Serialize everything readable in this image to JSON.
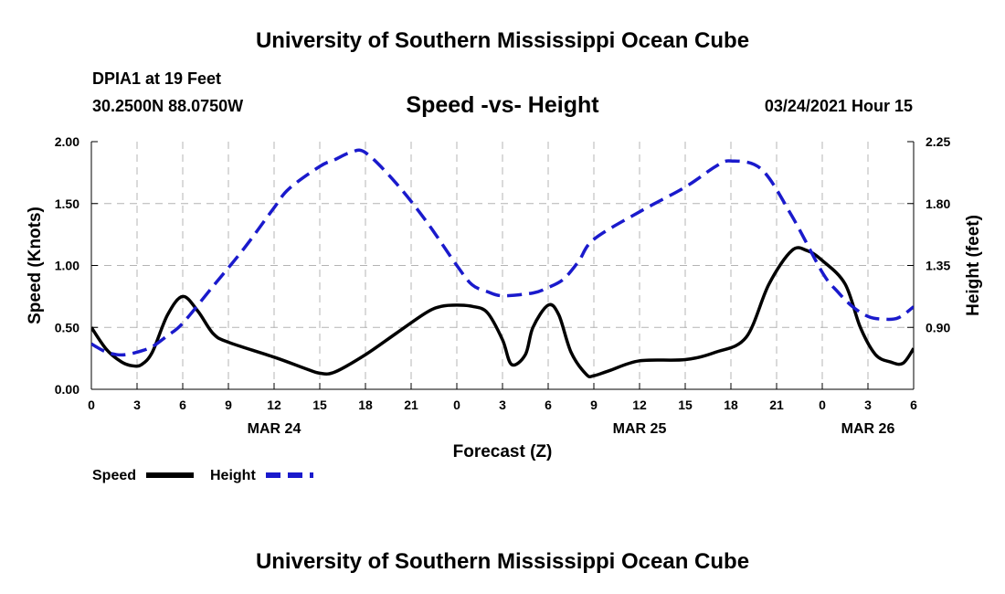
{
  "header": {
    "title": "University of Southern Mississippi Ocean Cube",
    "station": "DPIA1 at 19 Feet",
    "coordinates": "30.2500N 88.0750W",
    "subtitle": "Speed -vs- Height",
    "datetime": "03/24/2021 Hour 15"
  },
  "footer": {
    "title": "University of Southern Mississippi Ocean Cube"
  },
  "colors": {
    "speed": "#000000",
    "height": "#1a1acc",
    "grid": "#b4b4b4"
  },
  "chart_data": {
    "type": "line",
    "title": "Speed -vs- Height",
    "xlabel": "Forecast (Z)",
    "ylabel": "Speed (Knots)",
    "y2label": "Height (feet)",
    "xlim": [
      0,
      54
    ],
    "ylim": [
      0,
      2.0
    ],
    "y2lim": [
      0.45,
      2.25
    ],
    "x_ticks": [
      0,
      3,
      6,
      9,
      12,
      15,
      18,
      21,
      24,
      27,
      30,
      33,
      36,
      39,
      42,
      45,
      48,
      51,
      54
    ],
    "x_tick_labels": [
      "0",
      "3",
      "6",
      "9",
      "12",
      "15",
      "18",
      "21",
      "0",
      "3",
      "6",
      "9",
      "12",
      "15",
      "18",
      "21",
      "0",
      "3",
      "6"
    ],
    "date_labels": [
      {
        "x": 12,
        "label": "MAR 24"
      },
      {
        "x": 36,
        "label": "MAR 25"
      },
      {
        "x": 51,
        "label": "MAR 26"
      }
    ],
    "y_ticks": [
      0,
      0.5,
      1.0,
      1.5,
      2.0
    ],
    "y_tick_labels": [
      "0.00",
      "0.50",
      "1.00",
      "1.50",
      "2.00"
    ],
    "y2_ticks": [
      0.9,
      1.35,
      1.8,
      2.25
    ],
    "y2_tick_labels": [
      "0.90",
      "1.35",
      "1.80",
      "2.25"
    ],
    "legend_position": "bottom-left",
    "series": [
      {
        "name": "Speed",
        "axis": "left",
        "style": "solid",
        "x": [
          0,
          1,
          2,
          2.7,
          3.3,
          4,
          5,
          6,
          7,
          8,
          9,
          12,
          14,
          15,
          16,
          18,
          20,
          22,
          23,
          24,
          25,
          26,
          27,
          27.6,
          28.5,
          29,
          30,
          30.7,
          31.5,
          32.5,
          33,
          34,
          36,
          39,
          41,
          43,
          44.5,
          46,
          47,
          48,
          49.5,
          50.5,
          51.5,
          52.5,
          53.3,
          54
        ],
        "values": [
          0.5,
          0.32,
          0.22,
          0.19,
          0.2,
          0.3,
          0.6,
          0.75,
          0.63,
          0.45,
          0.38,
          0.26,
          0.17,
          0.13,
          0.14,
          0.28,
          0.45,
          0.62,
          0.67,
          0.68,
          0.67,
          0.62,
          0.4,
          0.2,
          0.28,
          0.5,
          0.68,
          0.6,
          0.3,
          0.12,
          0.11,
          0.15,
          0.23,
          0.24,
          0.3,
          0.42,
          0.85,
          1.12,
          1.12,
          1.04,
          0.85,
          0.5,
          0.28,
          0.22,
          0.21,
          0.33
        ]
      },
      {
        "name": "Height",
        "axis": "right",
        "style": "dashed",
        "x": [
          0,
          1,
          2,
          3,
          4,
          5,
          6,
          8,
          10,
          12,
          13,
          15,
          16,
          17,
          18,
          20,
          22,
          24,
          25,
          26,
          27,
          29,
          30,
          31,
          32,
          33,
          36,
          39,
          41,
          42,
          44,
          46,
          48,
          49,
          50,
          51,
          52,
          53,
          54
        ],
        "values": [
          0.78,
          0.72,
          0.7,
          0.72,
          0.76,
          0.84,
          0.93,
          1.2,
          1.47,
          1.77,
          1.91,
          2.07,
          2.12,
          2.17,
          2.17,
          1.95,
          1.67,
          1.35,
          1.21,
          1.16,
          1.13,
          1.15,
          1.19,
          1.25,
          1.38,
          1.54,
          1.74,
          1.92,
          2.07,
          2.11,
          2.05,
          1.71,
          1.3,
          1.16,
          1.05,
          0.98,
          0.96,
          0.97,
          1.05
        ]
      }
    ]
  }
}
